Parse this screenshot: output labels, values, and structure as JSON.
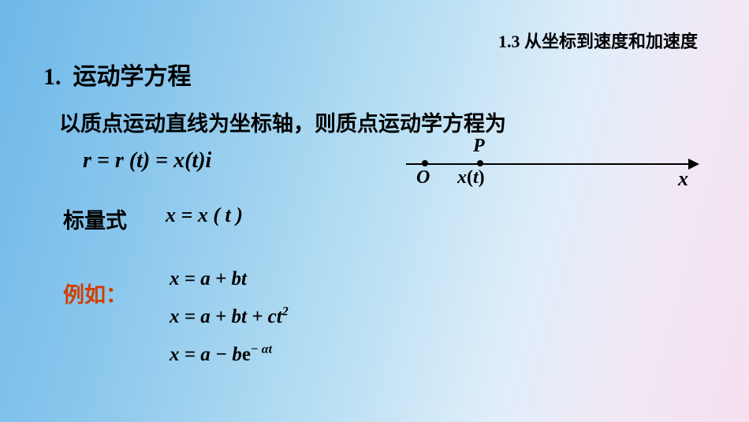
{
  "header": {
    "subtitle": "1.3  从坐标到速度和加速度"
  },
  "section": {
    "number": "1.",
    "title": "运动学方程"
  },
  "description": "以质点运动直线为坐标轴，则质点运动学方程为",
  "main_equation": "r  = r (t) = x(t)i",
  "diagram": {
    "label_p": "P",
    "label_o": "O",
    "label_xt": "x(t)",
    "label_x": "x",
    "axis_color": "#000000",
    "point_color": "#000000"
  },
  "scalar": {
    "label": "标量式",
    "equation": "x = x ( t )"
  },
  "examples": {
    "label": "例如：",
    "label_color": "#d04000",
    "eq1_lhs": "x  = ",
    "eq1_rhs": "a + bt",
    "eq2_lhs": "x  = ",
    "eq2_rhs_part1": "a + bt + ct",
    "eq2_sup": "2",
    "eq3_lhs": "x  = ",
    "eq3_rhs_part1": "a − b",
    "eq3_e": "e",
    "eq3_sup": "− αt"
  },
  "colors": {
    "text": "#000000",
    "accent": "#d04000",
    "bg_gradient_start": "#6eb8e8",
    "bg_gradient_end": "#f5e0f0"
  },
  "typography": {
    "heading_fontsize": 30,
    "body_fontsize": 27,
    "equation_fontsize": 26,
    "diagram_label_fontsize": 24
  }
}
